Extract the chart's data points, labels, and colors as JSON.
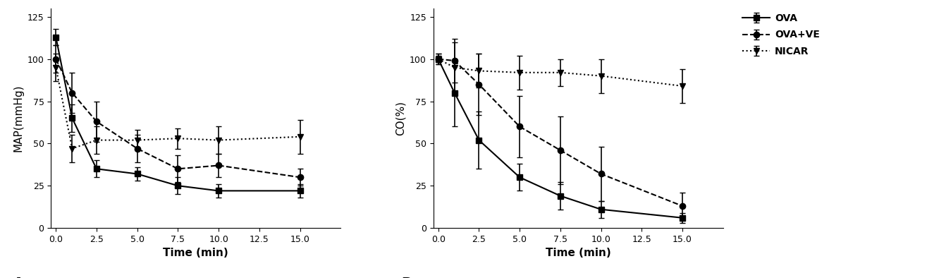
{
  "time_points": [
    0,
    1,
    2.5,
    5,
    7.5,
    10,
    15
  ],
  "map_ova_y": [
    113,
    65,
    35,
    32,
    25,
    22,
    22
  ],
  "map_ova_yerr": [
    5,
    8,
    5,
    4,
    5,
    4,
    4
  ],
  "map_ovave_y": [
    100,
    80,
    63,
    47,
    35,
    37,
    30
  ],
  "map_ovave_yerr": [
    8,
    12,
    12,
    8,
    8,
    7,
    5
  ],
  "map_nicar_y": [
    95,
    47,
    52,
    52,
    53,
    52,
    54
  ],
  "map_nicar_yerr": [
    8,
    8,
    8,
    6,
    6,
    8,
    10
  ],
  "co_ova_y": [
    100,
    80,
    52,
    30,
    19,
    11,
    6
  ],
  "co_ova_yerr": [
    3,
    20,
    17,
    8,
    8,
    5,
    3
  ],
  "co_ovave_y": [
    100,
    99,
    85,
    60,
    46,
    32,
    13
  ],
  "co_ovave_yerr": [
    2,
    13,
    18,
    18,
    20,
    16,
    8
  ],
  "co_nicar_y": [
    100,
    95,
    93,
    92,
    92,
    90,
    84
  ],
  "co_nicar_yerr": [
    3,
    15,
    10,
    10,
    8,
    10,
    10
  ],
  "map_ylim": [
    0,
    130
  ],
  "map_yticks": [
    0,
    25,
    50,
    75,
    100,
    125
  ],
  "co_ylim": [
    0,
    130
  ],
  "co_yticks": [
    0,
    25,
    50,
    75,
    100,
    125
  ],
  "xlim": [
    -0.3,
    17.5
  ],
  "xticks": [
    0.0,
    2.5,
    5.0,
    7.5,
    10.0,
    12.5,
    15.0
  ],
  "xlabel": "Time (min)",
  "map_ylabel": "MAP(mmHg)",
  "co_ylabel": "CO(%)",
  "label_a": "A",
  "label_b": "B",
  "legend_labels": [
    "OVA",
    "OVA+VE",
    "NICAR"
  ],
  "line_color": "#000000",
  "linewidth": 1.5,
  "markersize": 6,
  "capsize": 3,
  "elinewidth": 1.2,
  "label_fontsize": 11,
  "tick_fontsize": 9,
  "legend_fontsize": 10
}
